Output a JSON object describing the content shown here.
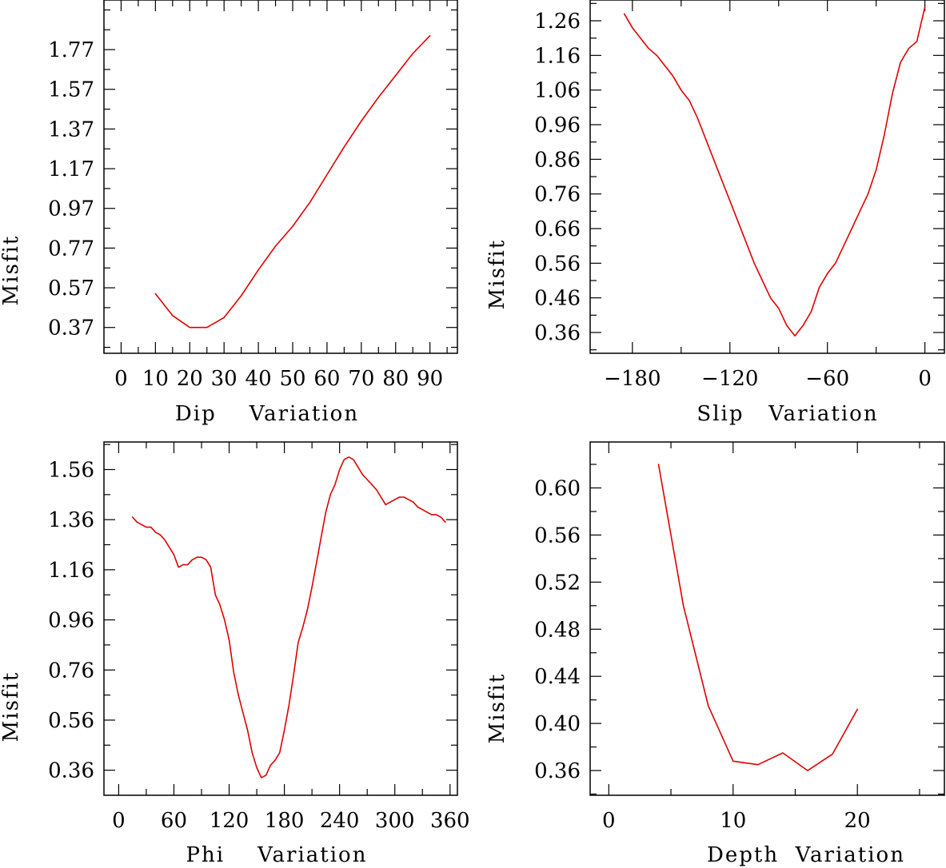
{
  "figure": {
    "line_color": "#e00000",
    "axis_color": "#000000"
  },
  "chart_data": [
    {
      "type": "line",
      "xlabel": "Dip    Variation",
      "ylabel": "Misfit",
      "xlim": [
        -5,
        98
      ],
      "ylim": [
        0.24,
        2.02
      ],
      "xticks": [
        0,
        10,
        20,
        30,
        40,
        50,
        60,
        70,
        80,
        90
      ],
      "xtick_labels": [
        "0",
        "10",
        "20",
        "30",
        "40",
        "50",
        "60",
        "70",
        "80",
        "90"
      ],
      "yticks": [
        0.37,
        0.57,
        0.77,
        0.97,
        1.17,
        1.37,
        1.57,
        1.77
      ],
      "ytick_labels": [
        "0.37",
        "0.57",
        "0.77",
        "0.97",
        "1.17",
        "1.37",
        "1.57",
        "1.77"
      ],
      "series": [
        {
          "name": "misfit",
          "x": [
            10,
            15,
            20,
            25,
            30,
            35,
            40,
            45,
            50,
            55,
            60,
            65,
            70,
            75,
            80,
            85,
            90
          ],
          "values": [
            0.54,
            0.43,
            0.37,
            0.37,
            0.42,
            0.53,
            0.66,
            0.78,
            0.88,
            1.0,
            1.14,
            1.28,
            1.41,
            1.53,
            1.64,
            1.75,
            1.84
          ]
        }
      ]
    },
    {
      "type": "line",
      "xlabel": "Slip   Variation",
      "ylabel": "Misfit",
      "xlim": [
        -206,
        12
      ],
      "ylim": [
        0.3,
        1.32
      ],
      "xticks": [
        -180,
        -120,
        -60,
        0
      ],
      "xtick_labels": [
        "−180",
        "−120",
        "−60",
        "0"
      ],
      "yticks": [
        0.36,
        0.46,
        0.56,
        0.66,
        0.76,
        0.86,
        0.96,
        1.06,
        1.16,
        1.26
      ],
      "ytick_labels": [
        "0.36",
        "0.46",
        "0.56",
        "0.66",
        "0.76",
        "0.86",
        "0.96",
        "1.06",
        "1.16",
        "1.26"
      ],
      "series": [
        {
          "name": "misfit",
          "x": [
            -185,
            -180,
            -175,
            -170,
            -165,
            -160,
            -155,
            -150,
            -145,
            -140,
            -135,
            -130,
            -125,
            -120,
            -115,
            -110,
            -105,
            -100,
            -95,
            -90,
            -85,
            -80,
            -75,
            -70,
            -65,
            -60,
            -55,
            -50,
            -45,
            -40,
            -35,
            -30,
            -25,
            -20,
            -15,
            -10,
            -5,
            0
          ],
          "values": [
            1.28,
            1.24,
            1.21,
            1.18,
            1.16,
            1.13,
            1.1,
            1.06,
            1.03,
            0.98,
            0.92,
            0.86,
            0.8,
            0.74,
            0.68,
            0.62,
            0.56,
            0.51,
            0.46,
            0.43,
            0.38,
            0.35,
            0.38,
            0.42,
            0.49,
            0.53,
            0.56,
            0.61,
            0.66,
            0.71,
            0.76,
            0.83,
            0.93,
            1.05,
            1.14,
            1.18,
            1.2,
            1.3
          ]
        }
      ]
    },
    {
      "type": "line",
      "xlabel": "Phi    Variation",
      "ylabel": "Misfit",
      "xlim": [
        -16,
        368
      ],
      "ylim": [
        0.26,
        1.67
      ],
      "xticks": [
        0,
        60,
        120,
        180,
        240,
        300,
        360
      ],
      "xtick_labels": [
        "0",
        "60",
        "120",
        "180",
        "240",
        "300",
        "360"
      ],
      "yticks": [
        0.36,
        0.56,
        0.76,
        0.96,
        1.16,
        1.36,
        1.56
      ],
      "ytick_labels": [
        "0.36",
        "0.56",
        "0.76",
        "0.96",
        "1.16",
        "1.36",
        "1.56"
      ],
      "series": [
        {
          "name": "misfit",
          "x": [
            15,
            20,
            25,
            30,
            35,
            40,
            45,
            50,
            55,
            60,
            65,
            70,
            75,
            80,
            85,
            90,
            95,
            100,
            105,
            110,
            115,
            120,
            125,
            130,
            135,
            140,
            145,
            150,
            155,
            160,
            165,
            170,
            175,
            180,
            185,
            190,
            195,
            200,
            205,
            210,
            215,
            220,
            225,
            230,
            235,
            240,
            245,
            250,
            255,
            260,
            265,
            270,
            275,
            280,
            285,
            290,
            295,
            300,
            305,
            310,
            315,
            320,
            325,
            330,
            335,
            340,
            345,
            350,
            355
          ],
          "values": [
            1.37,
            1.35,
            1.34,
            1.33,
            1.33,
            1.31,
            1.3,
            1.28,
            1.25,
            1.22,
            1.17,
            1.18,
            1.18,
            1.2,
            1.21,
            1.21,
            1.2,
            1.17,
            1.06,
            1.02,
            0.96,
            0.88,
            0.75,
            0.66,
            0.59,
            0.52,
            0.43,
            0.37,
            0.33,
            0.34,
            0.38,
            0.4,
            0.43,
            0.52,
            0.62,
            0.74,
            0.87,
            0.93,
            1.0,
            1.09,
            1.19,
            1.29,
            1.39,
            1.46,
            1.5,
            1.56,
            1.6,
            1.61,
            1.6,
            1.57,
            1.54,
            1.52,
            1.5,
            1.48,
            1.45,
            1.42,
            1.43,
            1.44,
            1.45,
            1.45,
            1.44,
            1.43,
            1.41,
            1.4,
            1.39,
            1.38,
            1.38,
            1.37,
            1.35
          ]
        }
      ]
    },
    {
      "type": "line",
      "xlabel": "Depth  Variation",
      "ylabel": "Misfit",
      "xlim": [
        -1.5,
        27
      ],
      "ylim": [
        0.339,
        0.639
      ],
      "xticks": [
        0,
        10,
        20
      ],
      "xtick_labels": [
        "0",
        "10",
        "20"
      ],
      "yticks": [
        0.36,
        0.4,
        0.44,
        0.48,
        0.52,
        0.56,
        0.6
      ],
      "ytick_labels": [
        "0.36",
        "0.40",
        "0.44",
        "0.48",
        "0.52",
        "0.56",
        "0.60"
      ],
      "series": [
        {
          "name": "misfit",
          "x": [
            4,
            6,
            8,
            10,
            12,
            14,
            16,
            18,
            20
          ],
          "values": [
            0.62,
            0.5,
            0.415,
            0.368,
            0.365,
            0.375,
            0.36,
            0.374,
            0.412
          ]
        }
      ]
    }
  ]
}
